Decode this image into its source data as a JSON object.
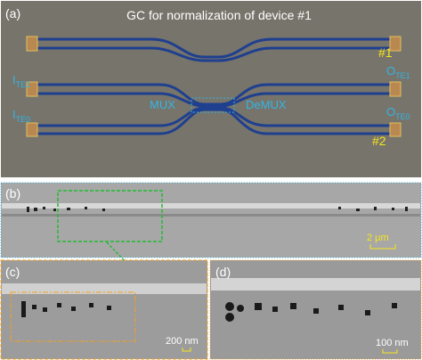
{
  "panel_a": {
    "label": "(a)",
    "title": "GC for normalization of device #1",
    "mark_top": "#1",
    "mark_bottom": "#2",
    "port_in_1": {
      "text": "I",
      "sub": "TE1"
    },
    "port_out_1": {
      "text": "O",
      "sub": "TE1"
    },
    "port_in_0": {
      "text": "I",
      "sub": "TE0"
    },
    "port_out_0": {
      "text": "O",
      "sub": "TE0"
    },
    "mux": "MUX",
    "demux": "DeMUX"
  },
  "panel_b": {
    "label": "(b)",
    "scale": "2 μm"
  },
  "panel_c": {
    "label": "(c)",
    "scale": "200 nm"
  },
  "panel_d": {
    "label": "(d)",
    "scale": "100 nm"
  }
}
